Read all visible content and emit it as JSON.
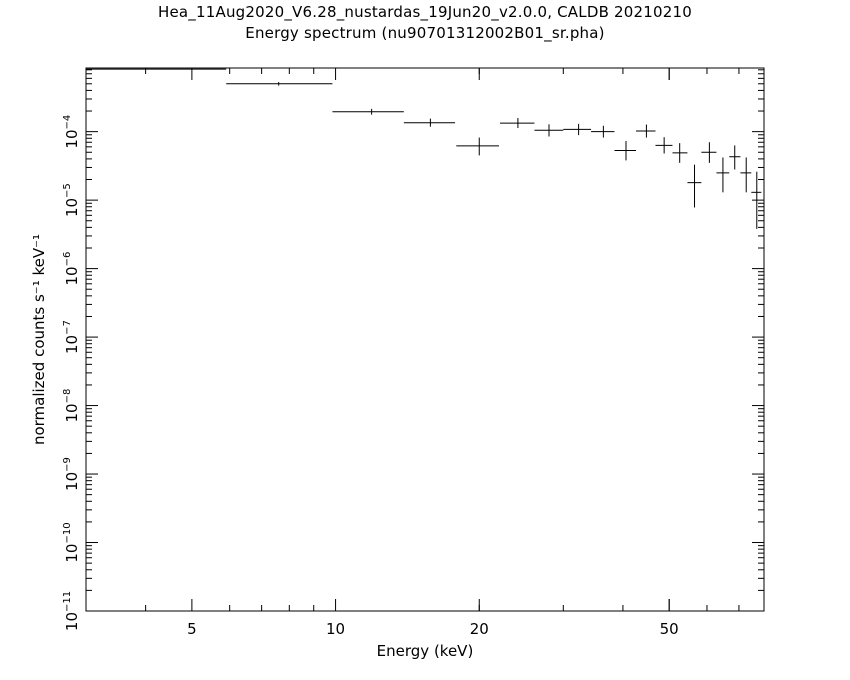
{
  "chart_data": {
    "type": "scatter",
    "title": "Hea_11Aug2020_V6.28_nustardas_19Jun20_v2.0.0, CALDB 20210210",
    "subtitle": "Energy spectrum (nu90701312002B01_sr.pha)",
    "xlabel": "Energy (keV)",
    "ylabel": "normalized counts s⁻¹ keV⁻¹",
    "x_scale": "log",
    "y_scale": "log",
    "xlim": [
      3,
      79
    ],
    "ylim": [
      1e-11,
      0.00085
    ],
    "x_tick_labels": [
      {
        "value": 5,
        "label": "5"
      },
      {
        "value": 10,
        "label": "10"
      },
      {
        "value": 20,
        "label": "20"
      },
      {
        "value": 50,
        "label": "50"
      }
    ],
    "y_tick_labels": [
      {
        "exp": -4,
        "label": "10",
        "sup": "−4"
      },
      {
        "exp": -5,
        "label": "10",
        "sup": "−5"
      },
      {
        "exp": -6,
        "label": "10",
        "sup": "−6"
      },
      {
        "exp": -7,
        "label": "10",
        "sup": "−7"
      },
      {
        "exp": -8,
        "label": "10",
        "sup": "−8"
      },
      {
        "exp": -9,
        "label": "10",
        "sup": "−9"
      },
      {
        "exp": -10,
        "label": "10",
        "sup": "−10"
      },
      {
        "exp": -11,
        "label": "10",
        "sup": "−11"
      }
    ],
    "grid": false,
    "points": [
      {
        "x": 4.5,
        "xlo": 3.0,
        "xhi": 5.9,
        "y": 0.00082,
        "ylo": 0.000815,
        "yhi": 0.000825
      },
      {
        "x": 7.6,
        "xlo": 5.9,
        "xhi": 9.85,
        "y": 0.0005,
        "ylo": 0.00047,
        "yhi": 0.00053
      },
      {
        "x": 11.9,
        "xlo": 9.85,
        "xhi": 13.9,
        "y": 0.000195,
        "ylo": 0.000177,
        "yhi": 0.000215
      },
      {
        "x": 15.8,
        "xlo": 13.9,
        "xhi": 17.8,
        "y": 0.000135,
        "ylo": 0.000118,
        "yhi": 0.000155
      },
      {
        "x": 20.0,
        "xlo": 17.9,
        "xhi": 22.0,
        "y": 6.2e-05,
        "ylo": 4.5e-05,
        "yhi": 8.2e-05
      },
      {
        "x": 24.1,
        "xlo": 22.1,
        "xhi": 26.1,
        "y": 0.000133,
        "ylo": 0.000113,
        "yhi": 0.000158
      },
      {
        "x": 28.0,
        "xlo": 26.1,
        "xhi": 30.0,
        "y": 0.000105,
        "ylo": 8.5e-05,
        "yhi": 0.000128
      },
      {
        "x": 32.3,
        "xlo": 30.0,
        "xhi": 34.3,
        "y": 0.000108,
        "ylo": 8.9e-05,
        "yhi": 0.00013
      },
      {
        "x": 36.4,
        "xlo": 34.3,
        "xhi": 38.4,
        "y": 0.0001,
        "ylo": 8.2e-05,
        "yhi": 0.000122
      },
      {
        "x": 40.6,
        "xlo": 38.4,
        "xhi": 42.6,
        "y": 5.3e-05,
        "ylo": 3.8e-05,
        "yhi": 7.3e-05
      },
      {
        "x": 44.8,
        "xlo": 42.6,
        "xhi": 46.8,
        "y": 0.000102,
        "ylo": 8.2e-05,
        "yhi": 0.000127
      },
      {
        "x": 48.8,
        "xlo": 46.8,
        "xhi": 50.8,
        "y": 6.3e-05,
        "ylo": 4.8e-05,
        "yhi": 8.3e-05
      },
      {
        "x": 52.6,
        "xlo": 50.8,
        "xhi": 54.6,
        "y": 4.9e-05,
        "ylo": 3.5e-05,
        "yhi": 6.8e-05
      },
      {
        "x": 56.5,
        "xlo": 54.6,
        "xhi": 58.4,
        "y": 1.8e-05,
        "ylo": 7.8e-06,
        "yhi": 3.3e-05
      },
      {
        "x": 60.7,
        "xlo": 58.4,
        "xhi": 62.8,
        "y": 5e-05,
        "ylo": 3.5e-05,
        "yhi": 7e-05
      },
      {
        "x": 64.8,
        "xlo": 62.8,
        "xhi": 66.8,
        "y": 2.5e-05,
        "ylo": 1.3e-05,
        "yhi": 4.2e-05
      },
      {
        "x": 68.6,
        "xlo": 66.8,
        "xhi": 70.5,
        "y": 4.3e-05,
        "ylo": 2.8e-05,
        "yhi": 6.3e-05
      },
      {
        "x": 72.5,
        "xlo": 70.5,
        "xhi": 74.3,
        "y": 2.5e-05,
        "ylo": 1.3e-05,
        "yhi": 4.2e-05
      },
      {
        "x": 76.3,
        "xlo": 74.3,
        "xhi": 78.0,
        "y": 1.3e-05,
        "ylo": 3.8e-06,
        "yhi": 2.6e-05
      }
    ]
  }
}
